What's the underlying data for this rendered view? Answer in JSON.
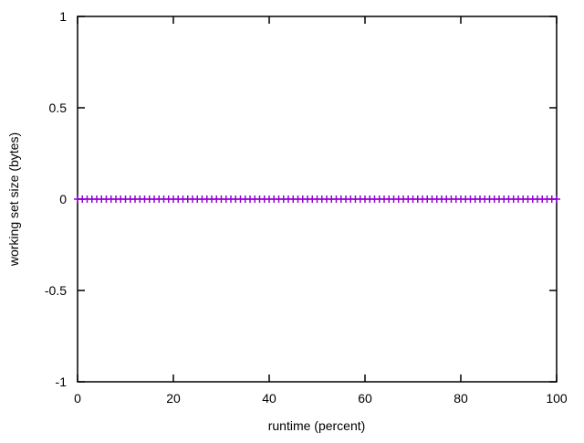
{
  "figure": {
    "background": "#ffffff",
    "border_color": "#000000",
    "text_color": "#000000"
  },
  "chart_data": {
    "type": "line",
    "style": "linespoints",
    "title": "",
    "xlabel": "runtime (percent)",
    "ylabel": "working set size (bytes)",
    "xlim": [
      0,
      100
    ],
    "ylim": [
      -1,
      1
    ],
    "xticks": {
      "values": [
        0,
        20,
        40,
        60,
        80,
        100
      ],
      "labels": [
        "0",
        "20",
        "40",
        "60",
        "80",
        "100"
      ]
    },
    "yticks": {
      "values": [
        -1,
        -0.5,
        0,
        0.5,
        1
      ],
      "labels": [
        "-1",
        "-0.5",
        "0",
        "0.5",
        "1"
      ]
    },
    "grid": false,
    "legend": "none",
    "ticks": "inward, mirrored on all four borders",
    "series": [
      {
        "name": "working set size",
        "color": "#9400d3",
        "marker": "plus",
        "marker_half_size_px": 4,
        "x_start": 0,
        "x_end": 100,
        "x_step": 1,
        "y_constant": 0,
        "description": "101 points from x=0 to x=100, all with y=0"
      }
    ]
  }
}
